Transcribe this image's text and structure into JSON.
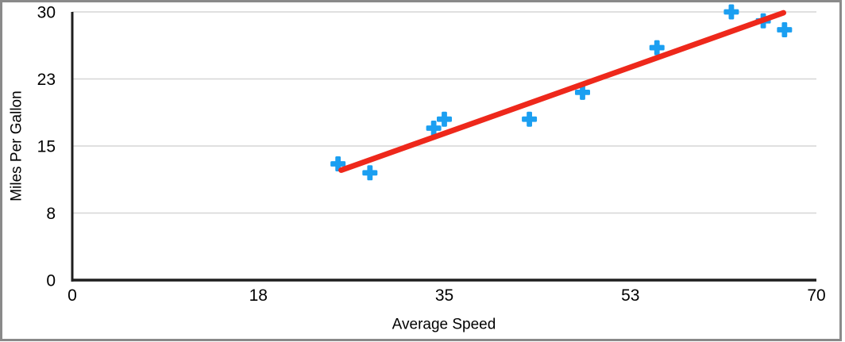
{
  "chart_data": {
    "type": "scatter",
    "title": "",
    "xlabel": "Average Speed",
    "ylabel": "Miles Per Gallon",
    "xlim": [
      0,
      70
    ],
    "ylim": [
      0,
      30
    ],
    "x_tick_labels": [
      "0",
      "18",
      "35",
      "53",
      "70"
    ],
    "y_tick_labels": [
      "0",
      "8",
      "15",
      "23",
      "30"
    ],
    "grid": "horizontal-only",
    "legend_position": "none",
    "series": [
      {
        "marker": "plus",
        "color": "#1b9ff1",
        "points": [
          [
            25,
            13
          ],
          [
            28,
            12
          ],
          [
            34,
            17
          ],
          [
            35,
            18
          ],
          [
            43,
            18
          ],
          [
            48,
            21
          ],
          [
            55,
            26
          ],
          [
            62,
            30
          ],
          [
            65,
            29
          ],
          [
            67,
            28
          ]
        ]
      }
    ],
    "trendline": {
      "type": "linear",
      "color": "#ee281b",
      "x1": 25.3,
      "y1": 12.3,
      "x2": 66.9,
      "y2": 29.9
    },
    "colors": {
      "marker": "#1b9ff1",
      "trendline": "#ee281b",
      "gridline": "#d6d6d6",
      "axis": "#1e1e1e",
      "text": "#000000",
      "frame": "#8a8a8a",
      "background": "#ffffff"
    }
  }
}
